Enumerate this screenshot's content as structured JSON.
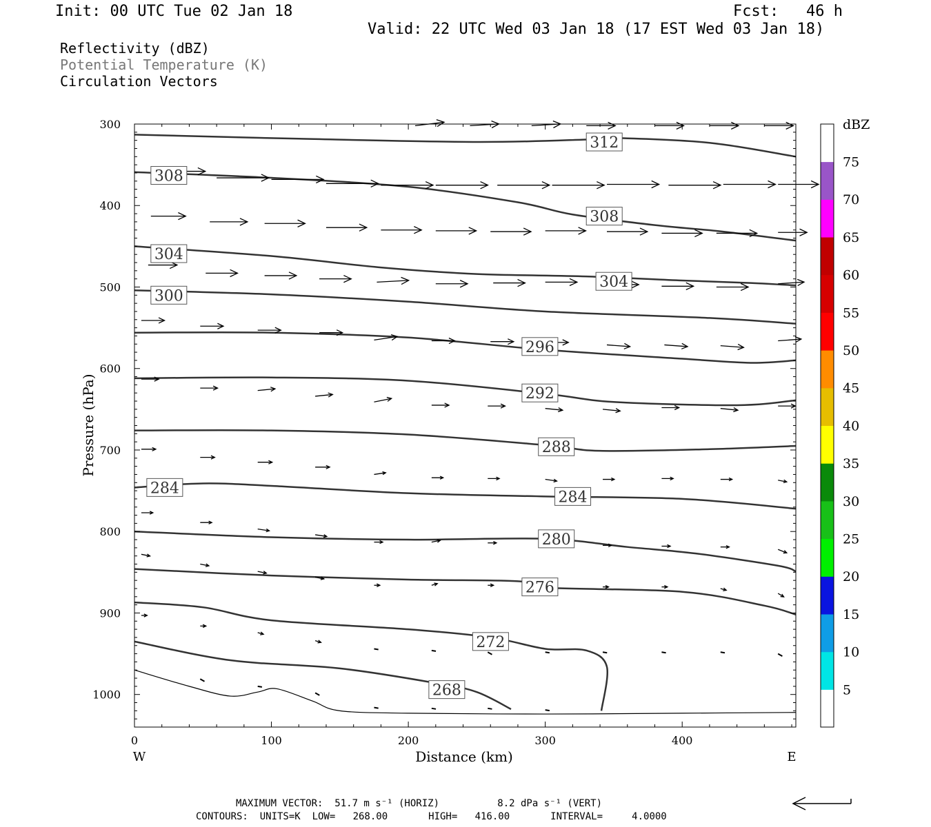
{
  "header": {
    "init": "Init: 00 UTC Tue 02 Jan 18",
    "fcst": "Fcst:   46 h",
    "valid": "Valid: 22 UTC Wed 03 Jan 18 (17 EST Wed 03 Jan 18)"
  },
  "fields": {
    "reflectivity": "Reflectivity (dBZ)",
    "theta": "Potential Temperature (K)",
    "vectors": "Circulation Vectors"
  },
  "footer": {
    "max_vector": "MAXIMUM VECTOR:  51.7 m s⁻¹ (HORIZ)          8.2 dPa s⁻¹ (VERT)",
    "contours": "CONTOURS:  UNITS=K  LOW=   268.00       HIGH=   416.00       INTERVAL=     4.0000"
  },
  "colors": {
    "contour": "#333333",
    "scale": [
      "#ffffff",
      "#00e5e5",
      "#0f9de6",
      "#0a14e0",
      "#00f000",
      "#18c018",
      "#0a8a0a",
      "#ffff00",
      "#e6be00",
      "#ff8c00",
      "#ff0000",
      "#d60000",
      "#c00000",
      "#ff00ff",
      "#9955c8",
      "#ffffff"
    ]
  },
  "chart_data": {
    "type": "cross-section",
    "xlabel": "Distance (km)",
    "ylabel": "Pressure (hPa)",
    "xlim": [
      0,
      483
    ],
    "ylim": [
      1040,
      300
    ],
    "xticks": [
      0,
      100,
      200,
      300,
      400
    ],
    "yticks": [
      300,
      400,
      500,
      600,
      700,
      800,
      900,
      1000
    ],
    "left_label": "W",
    "right_label": "E",
    "colorbar": {
      "label": "dBZ",
      "ticks": [
        5,
        10,
        15,
        20,
        25,
        30,
        35,
        40,
        45,
        50,
        55,
        60,
        65,
        70,
        75
      ]
    },
    "contours": [
      {
        "level": 312,
        "points": [
          [
            0,
            313
          ],
          [
            120,
            318
          ],
          [
            250,
            322
          ],
          [
            330,
            319
          ],
          [
            350,
            317
          ],
          [
            420,
            323
          ],
          [
            483,
            340
          ]
        ]
      },
      {
        "level": 308,
        "points": [
          [
            0,
            359
          ],
          [
            100,
            366
          ],
          [
            200,
            377
          ],
          [
            280,
            396
          ],
          [
            320,
            411
          ],
          [
            380,
            424
          ],
          [
            430,
            432
          ],
          [
            483,
            443
          ]
        ]
      },
      {
        "level": 304,
        "points": [
          [
            0,
            450
          ],
          [
            100,
            462
          ],
          [
            180,
            476
          ],
          [
            250,
            484
          ],
          [
            330,
            487
          ],
          [
            400,
            492
          ],
          [
            450,
            495
          ],
          [
            483,
            498
          ]
        ]
      },
      {
        "level": 300,
        "points": [
          [
            0,
            504
          ],
          [
            100,
            509
          ],
          [
            200,
            518
          ],
          [
            300,
            530
          ],
          [
            420,
            538
          ],
          [
            483,
            545
          ]
        ]
      },
      {
        "level": 296,
        "points": [
          [
            0,
            556
          ],
          [
            100,
            556
          ],
          [
            200,
            562
          ],
          [
            300,
            577
          ],
          [
            400,
            588
          ],
          [
            450,
            593
          ],
          [
            483,
            590
          ]
        ]
      },
      {
        "level": 292,
        "points": [
          [
            0,
            612
          ],
          [
            100,
            611
          ],
          [
            200,
            615
          ],
          [
            300,
            631
          ],
          [
            350,
            641
          ],
          [
            440,
            645
          ],
          [
            483,
            639
          ]
        ]
      },
      {
        "level": 288,
        "points": [
          [
            0,
            676
          ],
          [
            100,
            676
          ],
          [
            200,
            681
          ],
          [
            300,
            694
          ],
          [
            340,
            701
          ],
          [
            420,
            699
          ],
          [
            483,
            695
          ]
        ]
      },
      {
        "level": 284,
        "points": [
          [
            0,
            746
          ],
          [
            50,
            741
          ],
          [
            100,
            744
          ],
          [
            200,
            753
          ],
          [
            300,
            757
          ],
          [
            400,
            760
          ],
          [
            483,
            772
          ]
        ]
      },
      {
        "level": 280,
        "points": [
          [
            0,
            800
          ],
          [
            100,
            807
          ],
          [
            200,
            810
          ],
          [
            300,
            809
          ],
          [
            360,
            819
          ],
          [
            410,
            827
          ],
          [
            470,
            842
          ],
          [
            483,
            849
          ]
        ]
      },
      {
        "level": 276,
        "points": [
          [
            0,
            846
          ],
          [
            100,
            854
          ],
          [
            200,
            859
          ],
          [
            280,
            861
          ],
          [
            300,
            869
          ],
          [
            400,
            874
          ],
          [
            460,
            891
          ],
          [
            483,
            902
          ]
        ]
      },
      {
        "level": 272,
        "points": [
          [
            0,
            887
          ],
          [
            50,
            893
          ],
          [
            100,
            909
          ],
          [
            200,
            920
          ],
          [
            260,
            930
          ],
          [
            300,
            944
          ],
          [
            330,
            946
          ],
          [
            345,
            966
          ],
          [
            341,
            1020
          ]
        ]
      },
      {
        "level": 268,
        "points": [
          [
            0,
            935
          ],
          [
            70,
            958
          ],
          [
            150,
            968
          ],
          [
            220,
            986
          ],
          [
            250,
            997
          ],
          [
            275,
            1018
          ]
        ]
      }
    ],
    "terrain": [
      [
        0,
        970
      ],
      [
        40,
        990
      ],
      [
        70,
        1002
      ],
      [
        90,
        997
      ],
      [
        104,
        993
      ],
      [
        130,
        1008
      ],
      [
        150,
        1020
      ],
      [
        200,
        1023
      ],
      [
        300,
        1024
      ],
      [
        400,
        1023
      ],
      [
        483,
        1022
      ]
    ],
    "vectors": [
      {
        "x": 205,
        "p": 302,
        "u": 10,
        "w": -2
      },
      {
        "x": 245,
        "p": 302,
        "u": 10,
        "w": -1
      },
      {
        "x": 290,
        "p": 302,
        "u": 10,
        "w": -1
      },
      {
        "x": 330,
        "p": 302,
        "u": 10,
        "w": 0
      },
      {
        "x": 380,
        "p": 302,
        "u": 10,
        "w": 0
      },
      {
        "x": 420,
        "p": 302,
        "u": 10,
        "w": 0
      },
      {
        "x": 460,
        "p": 302,
        "u": 10,
        "w": 0
      },
      {
        "x": 20,
        "p": 358,
        "u": 15,
        "w": 0
      },
      {
        "x": 60,
        "p": 366,
        "u": 18,
        "w": 0
      },
      {
        "x": 100,
        "p": 368,
        "u": 18,
        "w": 0
      },
      {
        "x": 140,
        "p": 373,
        "u": 18,
        "w": 0
      },
      {
        "x": 180,
        "p": 375,
        "u": 18,
        "w": 0
      },
      {
        "x": 220,
        "p": 375,
        "u": 18,
        "w": 0
      },
      {
        "x": 265,
        "p": 375,
        "u": 18,
        "w": 0
      },
      {
        "x": 305,
        "p": 375,
        "u": 18,
        "w": 0
      },
      {
        "x": 345,
        "p": 374,
        "u": 18,
        "w": 0
      },
      {
        "x": 390,
        "p": 375,
        "u": 18,
        "w": 0
      },
      {
        "x": 430,
        "p": 374,
        "u": 18,
        "w": 0
      },
      {
        "x": 470,
        "p": 374,
        "u": 14,
        "w": 0
      },
      {
        "x": 12,
        "p": 413,
        "u": 12,
        "w": 0
      },
      {
        "x": 55,
        "p": 420,
        "u": 13,
        "w": 0
      },
      {
        "x": 95,
        "p": 422,
        "u": 14,
        "w": 0
      },
      {
        "x": 140,
        "p": 427,
        "u": 14,
        "w": 0
      },
      {
        "x": 180,
        "p": 430,
        "u": 14,
        "w": 0
      },
      {
        "x": 220,
        "p": 431,
        "u": 14,
        "w": 0
      },
      {
        "x": 260,
        "p": 432,
        "u": 14,
        "w": 0
      },
      {
        "x": 300,
        "p": 431,
        "u": 14,
        "w": 0
      },
      {
        "x": 345,
        "p": 432,
        "u": 14,
        "w": 0
      },
      {
        "x": 385,
        "p": 434,
        "u": 14,
        "w": 0
      },
      {
        "x": 425,
        "p": 434,
        "u": 14,
        "w": 0
      },
      {
        "x": 470,
        "p": 433,
        "u": 10,
        "w": 0
      },
      {
        "x": 10,
        "p": 473,
        "u": 10,
        "w": 0
      },
      {
        "x": 52,
        "p": 483,
        "u": 11,
        "w": 0
      },
      {
        "x": 95,
        "p": 486,
        "u": 11,
        "w": 0
      },
      {
        "x": 135,
        "p": 490,
        "u": 11,
        "w": 0
      },
      {
        "x": 177,
        "p": 494,
        "u": 11,
        "w": -1
      },
      {
        "x": 220,
        "p": 496,
        "u": 11,
        "w": 0
      },
      {
        "x": 262,
        "p": 495,
        "u": 11,
        "w": 0
      },
      {
        "x": 300,
        "p": 494,
        "u": 11,
        "w": 0
      },
      {
        "x": 345,
        "p": 497,
        "u": 11,
        "w": 0
      },
      {
        "x": 385,
        "p": 499,
        "u": 11,
        "w": 0
      },
      {
        "x": 425,
        "p": 500,
        "u": 11,
        "w": 0
      },
      {
        "x": 470,
        "p": 496,
        "u": 9,
        "w": -1
      },
      {
        "x": 5,
        "p": 541,
        "u": 8,
        "w": 0
      },
      {
        "x": 48,
        "p": 548,
        "u": 8,
        "w": 0
      },
      {
        "x": 90,
        "p": 553,
        "u": 8,
        "w": 0
      },
      {
        "x": 135,
        "p": 556,
        "u": 8,
        "w": 0
      },
      {
        "x": 175,
        "p": 565,
        "u": 8,
        "w": -2
      },
      {
        "x": 217,
        "p": 566,
        "u": 8,
        "w": 0
      },
      {
        "x": 260,
        "p": 567,
        "u": 8,
        "w": 0
      },
      {
        "x": 300,
        "p": 568,
        "u": 8,
        "w": 0
      },
      {
        "x": 345,
        "p": 571,
        "u": 8,
        "w": 1
      },
      {
        "x": 387,
        "p": 571,
        "u": 8,
        "w": 1
      },
      {
        "x": 428,
        "p": 572,
        "u": 8,
        "w": 1
      },
      {
        "x": 470,
        "p": 566,
        "u": 8,
        "w": -1
      },
      {
        "x": 5,
        "p": 613,
        "u": 6,
        "w": 0
      },
      {
        "x": 48,
        "p": 624,
        "u": 6,
        "w": 0
      },
      {
        "x": 90,
        "p": 627,
        "u": 6,
        "w": -1
      },
      {
        "x": 132,
        "p": 634,
        "u": 6,
        "w": -1
      },
      {
        "x": 175,
        "p": 641,
        "u": 6,
        "w": -2
      },
      {
        "x": 217,
        "p": 645,
        "u": 6,
        "w": 0
      },
      {
        "x": 258,
        "p": 646,
        "u": 6,
        "w": 0
      },
      {
        "x": 300,
        "p": 649,
        "u": 6,
        "w": 1
      },
      {
        "x": 342,
        "p": 650,
        "u": 6,
        "w": 1
      },
      {
        "x": 385,
        "p": 648,
        "u": 6,
        "w": 0
      },
      {
        "x": 428,
        "p": 649,
        "u": 6,
        "w": 1
      },
      {
        "x": 470,
        "p": 646,
        "u": 6,
        "w": 0
      },
      {
        "x": 5,
        "p": 699,
        "u": 5,
        "w": 0
      },
      {
        "x": 48,
        "p": 709,
        "u": 5,
        "w": 0
      },
      {
        "x": 90,
        "p": 715,
        "u": 5,
        "w": 0
      },
      {
        "x": 132,
        "p": 721,
        "u": 5,
        "w": 0
      },
      {
        "x": 175,
        "p": 730,
        "u": 4,
        "w": -1
      },
      {
        "x": 217,
        "p": 734,
        "u": 4,
        "w": 0
      },
      {
        "x": 258,
        "p": 735,
        "u": 4,
        "w": 0
      },
      {
        "x": 300,
        "p": 736,
        "u": 4,
        "w": 1
      },
      {
        "x": 342,
        "p": 736,
        "u": 4,
        "w": 0
      },
      {
        "x": 385,
        "p": 735,
        "u": 4,
        "w": 0
      },
      {
        "x": 428,
        "p": 736,
        "u": 4,
        "w": 0
      },
      {
        "x": 470,
        "p": 737,
        "u": 3,
        "w": 1
      },
      {
        "x": 5,
        "p": 777,
        "u": 4,
        "w": 0
      },
      {
        "x": 48,
        "p": 789,
        "u": 4,
        "w": 0
      },
      {
        "x": 90,
        "p": 797,
        "u": 4,
        "w": 1
      },
      {
        "x": 132,
        "p": 804,
        "u": 4,
        "w": 1
      },
      {
        "x": 175,
        "p": 813,
        "u": 3,
        "w": 0
      },
      {
        "x": 217,
        "p": 813,
        "u": 3,
        "w": -1
      },
      {
        "x": 258,
        "p": 814,
        "u": 3,
        "w": 0
      },
      {
        "x": 300,
        "p": 815,
        "u": 3,
        "w": 0
      },
      {
        "x": 342,
        "p": 817,
        "u": 3,
        "w": 0
      },
      {
        "x": 385,
        "p": 818,
        "u": 3,
        "w": 0
      },
      {
        "x": 428,
        "p": 819,
        "u": 3,
        "w": 0
      },
      {
        "x": 470,
        "p": 822,
        "u": 3,
        "w": 2
      },
      {
        "x": 5,
        "p": 828,
        "u": 3,
        "w": 1
      },
      {
        "x": 48,
        "p": 840,
        "u": 3,
        "w": 1
      },
      {
        "x": 90,
        "p": 849,
        "u": 3,
        "w": 1
      },
      {
        "x": 132,
        "p": 856,
        "u": 3,
        "w": 1
      },
      {
        "x": 175,
        "p": 866,
        "u": 2,
        "w": 0
      },
      {
        "x": 217,
        "p": 866,
        "u": 2,
        "w": -1
      },
      {
        "x": 258,
        "p": 866,
        "u": 2,
        "w": 0
      },
      {
        "x": 300,
        "p": 868,
        "u": 2,
        "w": 0
      },
      {
        "x": 342,
        "p": 868,
        "u": 2,
        "w": 0
      },
      {
        "x": 385,
        "p": 868,
        "u": 2,
        "w": 0
      },
      {
        "x": 428,
        "p": 870,
        "u": 2,
        "w": 1
      },
      {
        "x": 470,
        "p": 876,
        "u": 2,
        "w": 2
      },
      {
        "x": 5,
        "p": 903,
        "u": 2,
        "w": 0
      },
      {
        "x": 48,
        "p": 916,
        "u": 2,
        "w": 0
      },
      {
        "x": 90,
        "p": 924,
        "u": 2,
        "w": 1
      },
      {
        "x": 132,
        "p": 934,
        "u": 2,
        "w": 1
      },
      {
        "x": 175,
        "p": 944,
        "u": 1,
        "w": 0
      },
      {
        "x": 217,
        "p": 946,
        "u": 1,
        "w": 0
      },
      {
        "x": 258,
        "p": 948,
        "u": 1,
        "w": 1
      },
      {
        "x": 300,
        "p": 948,
        "u": 1,
        "w": 0
      },
      {
        "x": 342,
        "p": 948,
        "u": 1,
        "w": 0
      },
      {
        "x": 385,
        "p": 948,
        "u": 1,
        "w": 0
      },
      {
        "x": 428,
        "p": 948,
        "u": 1,
        "w": 0
      },
      {
        "x": 470,
        "p": 950,
        "u": 1,
        "w": 1
      },
      {
        "x": 48,
        "p": 981,
        "u": 1,
        "w": 1
      },
      {
        "x": 90,
        "p": 990,
        "u": 1,
        "w": 0
      },
      {
        "x": 132,
        "p": 998,
        "u": 1,
        "w": 1
      },
      {
        "x": 175,
        "p": 1016,
        "u": 1,
        "w": 0
      },
      {
        "x": 217,
        "p": 1017,
        "u": 1,
        "w": 0
      },
      {
        "x": 258,
        "p": 1017,
        "u": 1,
        "w": 0
      },
      {
        "x": 300,
        "p": 1019,
        "u": 1,
        "w": 0
      }
    ]
  }
}
